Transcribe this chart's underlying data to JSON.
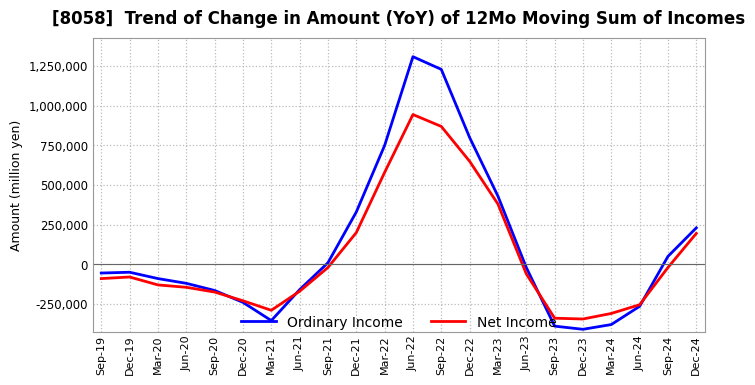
{
  "title": "[8058]  Trend of Change in Amount (YoY) of 12Mo Moving Sum of Incomes",
  "ylabel": "Amount (million yen)",
  "ylim": [
    -430000,
    1430000
  ],
  "yticks": [
    -250000,
    0,
    250000,
    500000,
    750000,
    1000000,
    1250000
  ],
  "background_color": "#ffffff",
  "plot_bg_color": "#ffffff",
  "grid_color": "#bbbbbb",
  "ordinary_income_color": "#0000ff",
  "net_income_color": "#ff0000",
  "x_labels": [
    "Sep-19",
    "Dec-19",
    "Mar-20",
    "Jun-20",
    "Sep-20",
    "Dec-20",
    "Mar-21",
    "Jun-21",
    "Sep-21",
    "Dec-21",
    "Mar-22",
    "Jun-22",
    "Sep-22",
    "Dec-22",
    "Mar-23",
    "Jun-23",
    "Sep-23",
    "Dec-23",
    "Mar-24",
    "Jun-24",
    "Sep-24",
    "Dec-24"
  ],
  "ordinary_income": [
    -55000,
    -50000,
    -90000,
    -120000,
    -165000,
    -240000,
    -355000,
    -160000,
    10000,
    330000,
    750000,
    1310000,
    1230000,
    800000,
    430000,
    -20000,
    -390000,
    -410000,
    -380000,
    -265000,
    50000,
    230000
  ],
  "net_income": [
    -90000,
    -80000,
    -130000,
    -145000,
    -175000,
    -230000,
    -290000,
    -170000,
    -20000,
    200000,
    580000,
    945000,
    870000,
    650000,
    380000,
    -60000,
    -340000,
    -345000,
    -310000,
    -255000,
    -20000,
    195000
  ]
}
